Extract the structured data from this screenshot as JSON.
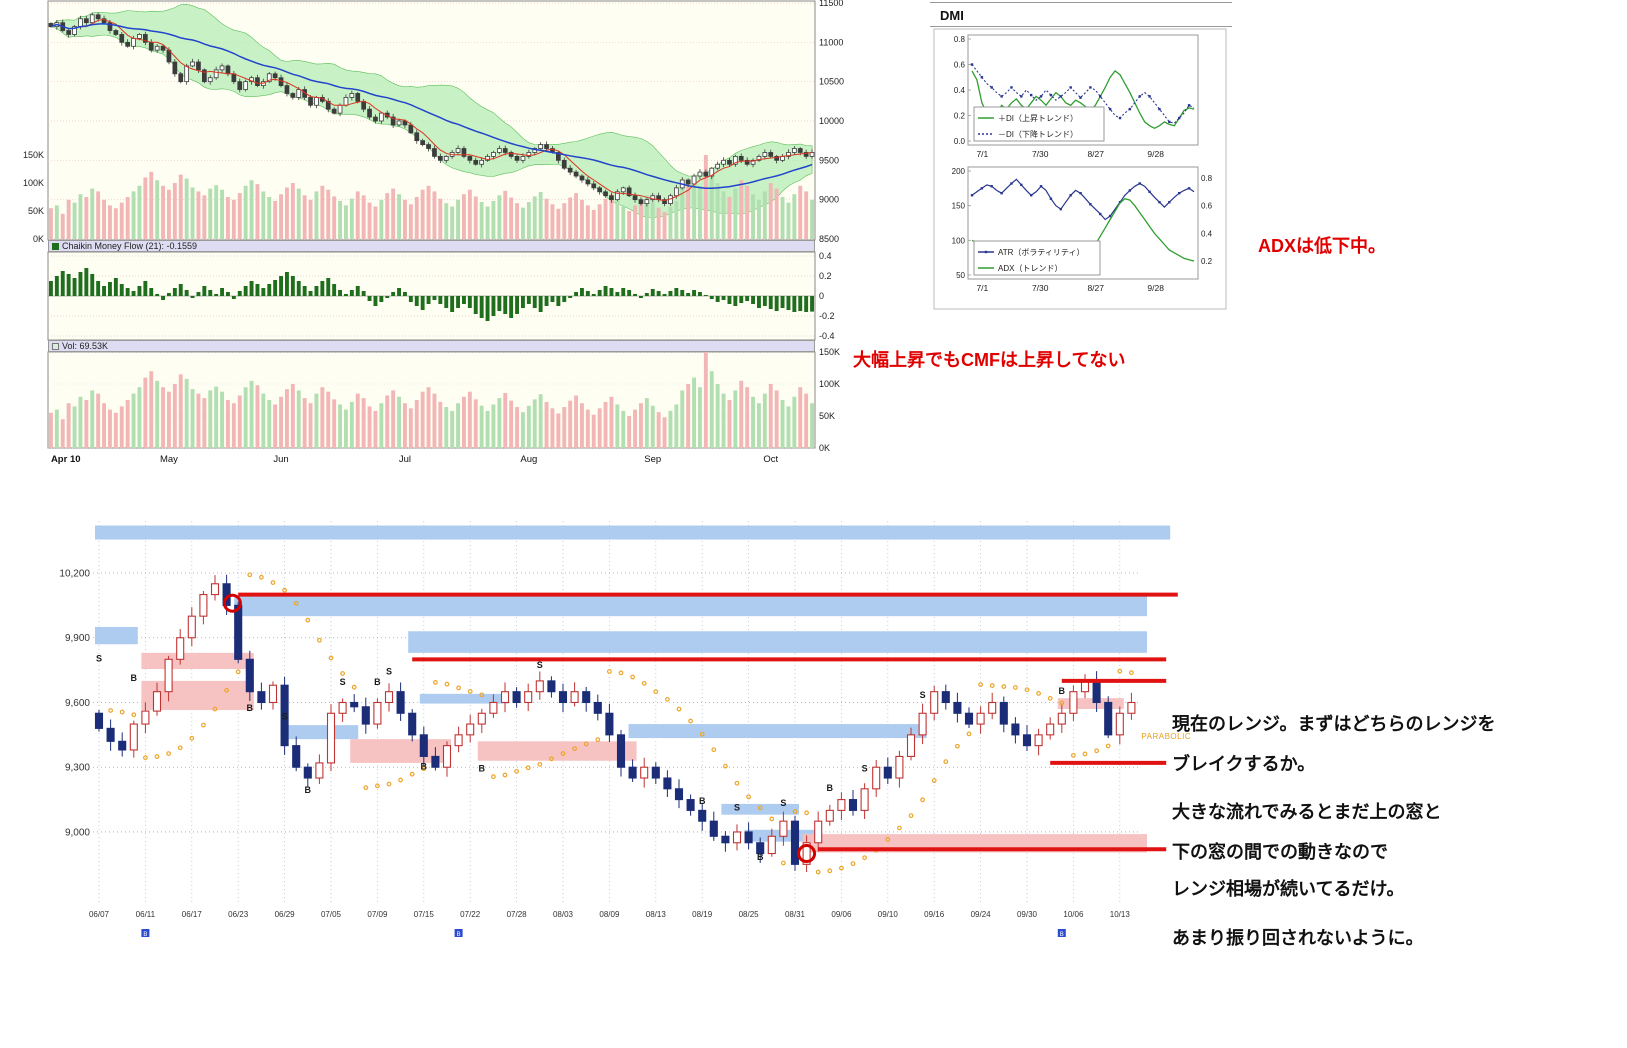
{
  "annotations": {
    "cmf_note": "大幅上昇でもCMFは上昇してない",
    "adx_note": "ADXは低下中。",
    "parabolic_label": "PARABOLIC",
    "range_notes": [
      "現在のレンジ。まずはどちらのレンジを",
      "ブレイクするか。",
      "大きな流れでみるとまだ上の窓と",
      "下の窓の間での動きなので",
      "レンジ相場が続いてるだけ。",
      "あまり振り回されないように。"
    ]
  },
  "colors": {
    "red_annotation": "#e00000",
    "red_line": "#e01212",
    "band_blue": "#a9c9ef",
    "band_pink": "#f7bfbf",
    "sar_orange": "#eda62a",
    "candle_down_navy": "#1c2d78",
    "candle_up_red": "#c03333",
    "cmf_bar_green": "#1e6e1e",
    "ma_short_red": "#dd3322",
    "ma_long_blue": "#2244cc",
    "bollinger_green": "#b6ecb6"
  },
  "chart_data": [
    {
      "id": "main_chart",
      "type": "candlestick",
      "title": "",
      "x_labels": [
        {
          "label": "Apr 10",
          "i": 0
        },
        {
          "label": "May",
          "i": 20
        },
        {
          "label": "Jun",
          "i": 39
        },
        {
          "label": "Jul",
          "i": 60
        },
        {
          "label": "Aug",
          "i": 81
        },
        {
          "label": "Sep",
          "i": 102
        },
        {
          "label": "Oct",
          "i": 122
        }
      ],
      "y_axis_right": [
        11500,
        11000,
        10500,
        10000,
        9500,
        9000,
        8500
      ],
      "volume_axis_labels": [
        "150K",
        "100K",
        "50K",
        "0K"
      ],
      "volume_axis_values": [
        150,
        100,
        50,
        0
      ],
      "overlays": [
        "bollinger-band-green",
        "ma-short-red",
        "ma-long-blue",
        "volume-overlay"
      ],
      "close": [
        11200,
        11250,
        11150,
        11100,
        11200,
        11300,
        11250,
        11350,
        11300,
        11250,
        11150,
        11100,
        11000,
        10950,
        11050,
        11100,
        11000,
        10900,
        10950,
        10900,
        10750,
        10600,
        10500,
        10700,
        10750,
        10650,
        10500,
        10550,
        10650,
        10700,
        10600,
        10500,
        10400,
        10500,
        10550,
        10450,
        10500,
        10600,
        10550,
        10450,
        10350,
        10300,
        10400,
        10300,
        10200,
        10300,
        10250,
        10150,
        10100,
        10200,
        10300,
        10350,
        10250,
        10150,
        10050,
        10000,
        10100,
        10050,
        9950,
        10000,
        9950,
        9850,
        9750,
        9700,
        9650,
        9550,
        9500,
        9550,
        9600,
        9650,
        9550,
        9500,
        9450,
        9500,
        9550,
        9600,
        9650,
        9600,
        9550,
        9500,
        9550,
        9600,
        9650,
        9700,
        9650,
        9600,
        9500,
        9400,
        9350,
        9300,
        9250,
        9200,
        9150,
        9100,
        9050,
        9000,
        9100,
        9150,
        9050,
        9000,
        8950,
        9000,
        9050,
        9000,
        8950,
        9050,
        9150,
        9250,
        9200,
        9300,
        9350,
        9300,
        9400,
        9450,
        9500,
        9450,
        9550,
        9500,
        9450,
        9500,
        9550,
        9600,
        9550,
        9500,
        9550,
        9600,
        9650,
        9600,
        9550,
        9600
      ],
      "volume": [
        55,
        60,
        45,
        70,
        65,
        80,
        75,
        90,
        85,
        70,
        60,
        55,
        65,
        75,
        85,
        95,
        110,
        120,
        105,
        95,
        88,
        100,
        115,
        108,
        92,
        85,
        78,
        90,
        96,
        88,
        75,
        70,
        82,
        95,
        105,
        98,
        85,
        75,
        68,
        80,
        92,
        100,
        90,
        78,
        70,
        85,
        95,
        88,
        76,
        68,
        60,
        72,
        85,
        78,
        65,
        58,
        70,
        82,
        90,
        80,
        70,
        62,
        75,
        88,
        95,
        85,
        72,
        64,
        58,
        70,
        80,
        88,
        76,
        66,
        58,
        68,
        78,
        86,
        74,
        64,
        56,
        66,
        76,
        84,
        72,
        62,
        54,
        64,
        74,
        82,
        70,
        60,
        52,
        62,
        72,
        80,
        68,
        58,
        50,
        60,
        70,
        78,
        66,
        56,
        48,
        58,
        68,
        90,
        100,
        110,
        95,
        150,
        120,
        100,
        85,
        75,
        90,
        105,
        95,
        80,
        70,
        85,
        100,
        90,
        75,
        65,
        80,
        95,
        85,
        70
      ]
    },
    {
      "id": "cmf",
      "type": "bar",
      "label": "Chaikin Money Flow (21): -0.1559",
      "y_ticks": [
        0.4,
        0.2,
        0,
        -0.2,
        -0.4
      ],
      "values": [
        0.15,
        0.2,
        0.25,
        0.22,
        0.18,
        0.24,
        0.28,
        0.22,
        0.15,
        0.1,
        0.14,
        0.18,
        0.12,
        0.08,
        0.05,
        0.1,
        0.15,
        0.08,
        0.02,
        -0.04,
        0.03,
        0.08,
        0.12,
        0.06,
        -0.02,
        0.04,
        0.1,
        0.06,
        0.02,
        0.08,
        0.04,
        -0.03,
        0.05,
        0.1,
        0.15,
        0.12,
        0.08,
        0.12,
        0.16,
        0.2,
        0.24,
        0.2,
        0.15,
        0.1,
        0.05,
        0.1,
        0.15,
        0.18,
        0.12,
        0.06,
        0.02,
        0.06,
        0.1,
        0.05,
        -0.05,
        -0.1,
        -0.06,
        -0.02,
        0.04,
        0.08,
        0.04,
        -0.06,
        -0.1,
        -0.14,
        -0.08,
        -0.04,
        -0.08,
        -0.12,
        -0.16,
        -0.12,
        -0.08,
        -0.12,
        -0.18,
        -0.22,
        -0.25,
        -0.2,
        -0.15,
        -0.18,
        -0.22,
        -0.18,
        -0.12,
        -0.08,
        -0.12,
        -0.16,
        -0.1,
        -0.06,
        -0.1,
        -0.06,
        -0.02,
        0.04,
        0.08,
        0.05,
        0.02,
        0.06,
        0.1,
        0.08,
        0.04,
        0.08,
        0.06,
        0.02,
        -0.02,
        0.03,
        0.07,
        0.05,
        0.02,
        0.05,
        0.08,
        0.06,
        0.03,
        0.06,
        0.04,
        0.01,
        -0.03,
        -0.06,
        -0.04,
        -0.08,
        -0.1,
        -0.07,
        -0.05,
        -0.08,
        -0.12,
        -0.1,
        -0.13,
        -0.15,
        -0.12,
        -0.14,
        -0.16,
        -0.15,
        -0.16,
        -0.156
      ]
    },
    {
      "id": "volume",
      "type": "bar",
      "label": "Vol: 69.53K",
      "y_ticks": [
        "150K",
        "100K",
        "50K",
        "0K"
      ],
      "values_source": "main_chart.volume"
    },
    {
      "id": "dmi",
      "type": "line",
      "title": "DMI",
      "x_labels": [
        "7/1",
        "7/30",
        "8/27",
        "9/28"
      ],
      "panel1": {
        "y_ticks": [
          0.8,
          0.6,
          0.4,
          0.2,
          0.0
        ],
        "series": [
          {
            "name": "＋DI（上昇トレンド）",
            "color": "#2f9e2f",
            "style": "solid",
            "values": [
              0.55,
              0.48,
              0.3,
              0.22,
              0.18,
              0.22,
              0.28,
              0.25,
              0.3,
              0.33,
              0.28,
              0.25,
              0.3,
              0.35,
              0.32,
              0.28,
              0.33,
              0.38,
              0.35,
              0.3,
              0.28,
              0.32,
              0.3,
              0.27,
              0.24,
              0.28,
              0.35,
              0.42,
              0.5,
              0.55,
              0.52,
              0.45,
              0.38,
              0.3,
              0.22,
              0.15,
              0.12,
              0.1,
              0.12,
              0.15,
              0.13,
              0.12,
              0.18,
              0.24,
              0.26,
              0.25
            ]
          },
          {
            "name": "－DI（下降トレンド）",
            "color": "#28368f",
            "style": "dotted",
            "values": [
              0.6,
              0.55,
              0.5,
              0.45,
              0.42,
              0.38,
              0.35,
              0.38,
              0.42,
              0.38,
              0.35,
              0.4,
              0.36,
              0.32,
              0.35,
              0.4,
              0.36,
              0.32,
              0.35,
              0.38,
              0.42,
              0.38,
              0.34,
              0.38,
              0.42,
              0.4,
              0.35,
              0.3,
              0.25,
              0.2,
              0.18,
              0.22,
              0.25,
              0.3,
              0.35,
              0.38,
              0.35,
              0.3,
              0.25,
              0.2,
              0.15,
              0.14,
              0.18,
              0.22,
              0.28,
              0.26
            ]
          }
        ]
      },
      "panel2": {
        "left_ticks": [
          200,
          150,
          100,
          50
        ],
        "right_ticks": [
          0.8,
          0.6,
          0.4,
          0.2
        ],
        "series": [
          {
            "name": "ATR（ボラティリティ）",
            "color": "#28368f",
            "axis": "left",
            "values": [
              165,
              170,
              175,
              180,
              178,
              172,
              168,
              175,
              182,
              188,
              180,
              172,
              165,
              170,
              178,
              172,
              160,
              150,
              145,
              155,
              165,
              172,
              168,
              160,
              152,
              145,
              138,
              130,
              135,
              145,
              155,
              165,
              172,
              178,
              182,
              178,
              170,
              162,
              155,
              148,
              155,
              162,
              168,
              172,
              175,
              170
            ]
          },
          {
            "name": "ADX（トレンド）",
            "color": "#2f9e2f",
            "axis": "right",
            "values": [
              0.35,
              0.33,
              0.3,
              0.28,
              0.3,
              0.32,
              0.3,
              0.28,
              0.26,
              0.28,
              0.3,
              0.32,
              0.3,
              0.28,
              0.26,
              0.25,
              0.27,
              0.3,
              0.32,
              0.34,
              0.32,
              0.3,
              0.28,
              0.27,
              0.28,
              0.32,
              0.38,
              0.44,
              0.5,
              0.56,
              0.62,
              0.65,
              0.64,
              0.6,
              0.55,
              0.5,
              0.45,
              0.4,
              0.36,
              0.32,
              0.28,
              0.26,
              0.24,
              0.22,
              0.21,
              0.2
            ]
          }
        ]
      }
    },
    {
      "id": "daily_chart",
      "type": "candlestick",
      "y_ticks": [
        "10,200",
        "9,900",
        "9,600",
        "9,300",
        "9,000"
      ],
      "y_tick_values": [
        10200,
        9900,
        9600,
        9300,
        9000
      ],
      "x_labels": [
        "06/07",
        "06/11",
        "06/17",
        "06/23",
        "06/29",
        "07/05",
        "07/09",
        "07/15",
        "07/22",
        "07/28",
        "08/03",
        "08/09",
        "08/13",
        "08/19",
        "08/25",
        "08/31",
        "09/06",
        "09/10",
        "09/16",
        "09/24",
        "09/30",
        "10/06",
        "10/13"
      ],
      "close": [
        9480,
        9420,
        9380,
        9500,
        9560,
        9650,
        9800,
        9900,
        10000,
        10100,
        10150,
        10050,
        9800,
        9650,
        9600,
        9680,
        9400,
        9300,
        9250,
        9320,
        9550,
        9600,
        9580,
        9500,
        9600,
        9650,
        9550,
        9450,
        9350,
        9300,
        9400,
        9450,
        9500,
        9550,
        9600,
        9650,
        9600,
        9650,
        9700,
        9650,
        9600,
        9650,
        9600,
        9550,
        9450,
        9300,
        9250,
        9300,
        9250,
        9200,
        9150,
        9100,
        9050,
        8980,
        8950,
        9000,
        8950,
        8900,
        8980,
        9050,
        8850,
        8950,
        9050,
        9100,
        9150,
        9100,
        9200,
        9300,
        9250,
        9350,
        9450,
        9550,
        9650,
        9600,
        9550,
        9500,
        9550,
        9600,
        9500,
        9450,
        9400,
        9450,
        9500,
        9550,
        9650,
        9700,
        9600,
        9450,
        9550,
        9600
      ],
      "bands": [
        {
          "i1": 0,
          "i2": 92,
          "top": 10420,
          "bottom": 10355,
          "color": "blue"
        },
        {
          "i1": 12,
          "i2": 90,
          "top": 10100,
          "bottom": 10000,
          "color": "blue"
        },
        {
          "i1": 0,
          "i2": 3,
          "top": 9950,
          "bottom": 9870,
          "color": "blue"
        },
        {
          "i1": 27,
          "i2": 90,
          "top": 9930,
          "bottom": 9830,
          "color": "blue"
        },
        {
          "i1": 4,
          "i2": 13,
          "top": 9830,
          "bottom": 9755,
          "color": "pink"
        },
        {
          "i1": 4,
          "i2": 13,
          "top": 9700,
          "bottom": 9565,
          "color": "pink"
        },
        {
          "i1": 16,
          "i2": 22,
          "top": 9495,
          "bottom": 9430,
          "color": "blue"
        },
        {
          "i1": 22,
          "i2": 30,
          "top": 9430,
          "bottom": 9320,
          "color": "pink"
        },
        {
          "i1": 28,
          "i2": 35,
          "top": 9640,
          "bottom": 9595,
          "color": "blue"
        },
        {
          "i1": 33,
          "i2": 46,
          "top": 9420,
          "bottom": 9330,
          "color": "pink"
        },
        {
          "i1": 46,
          "i2": 71,
          "top": 9500,
          "bottom": 9435,
          "color": "blue"
        },
        {
          "i1": 54,
          "i2": 60,
          "top": 9130,
          "bottom": 9080,
          "color": "blue"
        },
        {
          "i1": 56,
          "i2": 62,
          "top": 9010,
          "bottom": 8955,
          "color": "blue"
        },
        {
          "i1": 61,
          "i2": 90,
          "top": 8990,
          "bottom": 8905,
          "color": "pink"
        },
        {
          "i1": 83,
          "i2": 88,
          "top": 9620,
          "bottom": 9570,
          "color": "pink"
        }
      ],
      "red_lines": [
        {
          "price": 10100,
          "i1": 12,
          "i2": 93
        },
        {
          "price": 9800,
          "i1": 27,
          "i2": 92
        },
        {
          "price": 9700,
          "i1": 83,
          "i2": 92
        },
        {
          "price": 9320,
          "i1": 82,
          "i2": 92
        },
        {
          "price": 8920,
          "i1": 62,
          "i2": 92
        }
      ],
      "red_circles": [
        {
          "i": 11.5,
          "price": 10060
        },
        {
          "i": 61,
          "price": 8900
        }
      ],
      "trade_markers": [
        {
          "i": 0,
          "label": "S",
          "price": 9790
        },
        {
          "i": 3,
          "label": "B",
          "price": 9700
        },
        {
          "i": 13,
          "label": "B",
          "price": 9560
        },
        {
          "i": 16,
          "label": "S",
          "price": 9520
        },
        {
          "i": 18,
          "label": "B",
          "price": 9180
        },
        {
          "i": 21,
          "label": "S",
          "price": 9680
        },
        {
          "i": 24,
          "label": "B",
          "price": 9680
        },
        {
          "i": 25,
          "label": "S",
          "price": 9730
        },
        {
          "i": 28,
          "label": "B",
          "price": 9290
        },
        {
          "i": 33,
          "label": "B",
          "price": 9280
        },
        {
          "i": 38,
          "label": "S",
          "price": 9760
        },
        {
          "i": 52,
          "label": "B",
          "price": 9130
        },
        {
          "i": 55,
          "label": "S",
          "price": 9100
        },
        {
          "i": 57,
          "label": "B",
          "price": 8870
        },
        {
          "i": 59,
          "label": "S",
          "price": 9120
        },
        {
          "i": 63,
          "label": "B",
          "price": 9190
        },
        {
          "i": 66,
          "label": "S",
          "price": 9280
        },
        {
          "i": 71,
          "label": "S",
          "price": 9620
        },
        {
          "i": 83,
          "label": "B",
          "price": 9640
        }
      ],
      "event_marker_indices": [
        4,
        31,
        83
      ]
    }
  ]
}
